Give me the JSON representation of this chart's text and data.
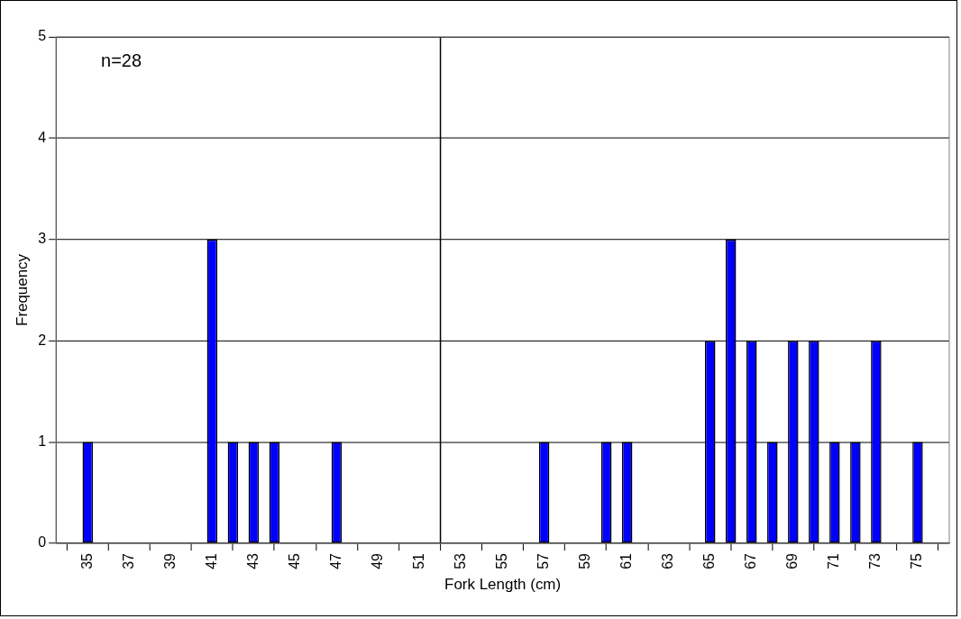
{
  "chart_data": {
    "type": "bar",
    "xlabel": "Fork Length (cm)",
    "ylabel": "Frequency",
    "x": [
      35,
      41,
      42,
      43,
      44,
      47,
      57,
      60,
      61,
      65,
      66,
      67,
      68,
      69,
      70,
      71,
      72,
      73,
      75
    ],
    "values": [
      1,
      3,
      1,
      1,
      1,
      1,
      1,
      1,
      1,
      2,
      3,
      2,
      1,
      2,
      2,
      1,
      1,
      2,
      1
    ],
    "color": "#0000ff",
    "xlim": [
      34.5,
      75.5
    ],
    "xticks": [
      35,
      37,
      39,
      41,
      43,
      45,
      47,
      49,
      51,
      53,
      55,
      57,
      59,
      61,
      63,
      65,
      67,
      69,
      71,
      73,
      75
    ],
    "ylim": [
      0,
      5
    ],
    "yticks": [
      0,
      1,
      2,
      3,
      4,
      5
    ],
    "grid": "y",
    "legend": false,
    "ref_lines": [
      {
        "axis": "x",
        "value": 52,
        "color": "#000000"
      }
    ],
    "annotations": [
      "n=28"
    ]
  }
}
